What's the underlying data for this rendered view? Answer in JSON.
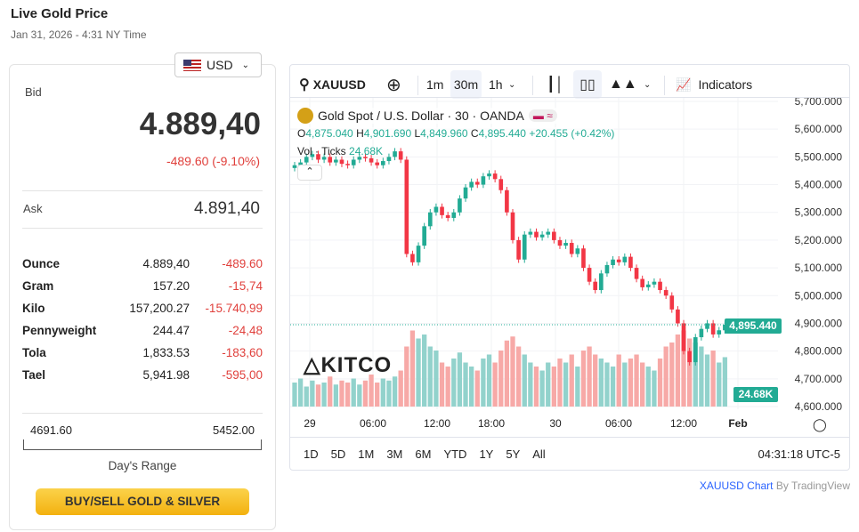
{
  "header": {
    "title": "Live Gold Price",
    "date": "Jan 31, 2026 - 4:31 NY Time"
  },
  "currency": {
    "selected": "USD"
  },
  "quote": {
    "bid_label": "Bid",
    "bid": "4.889,40",
    "change": "-489.60 (-9.10%)",
    "ask_label": "Ask",
    "ask": "4.891,40"
  },
  "units": [
    {
      "name": "Ounce",
      "price": "4.889,40",
      "change": "-489.60"
    },
    {
      "name": "Gram",
      "price": "157.20",
      "change": "-15,74"
    },
    {
      "name": "Kilo",
      "price": "157,200.27",
      "change": "-15.740,99"
    },
    {
      "name": "Pennyweight",
      "price": "244.47",
      "change": "-24,48"
    },
    {
      "name": "Tola",
      "price": "1,833.53",
      "change": "-183,60"
    },
    {
      "name": "Tael",
      "price": "5,941.98",
      "change": "-595,00"
    }
  ],
  "range": {
    "low": "4691.60",
    "high": "5452.00",
    "label": "Day's Range",
    "position": 0.26
  },
  "cta": "BUY/SELL GOLD & SILVER",
  "tv": {
    "symbol": "XAUUSD",
    "intervals": [
      "1m",
      "30m",
      "1h"
    ],
    "indicators": "Indicators",
    "legend_title": "Gold Spot / U.S. Dollar · 30 · OANDA",
    "ohlc": {
      "o_label": "O",
      "o": "4,875.040",
      "h_label": "H",
      "h": "4,901.690",
      "l_label": "L",
      "l": "4,849.960",
      "c_label": "C",
      "c": "4,895.440",
      "chg": "+20.455 (+0.42%)"
    },
    "vol_label": "Vol · Ticks",
    "vol_value": "24.68K",
    "logo": "KITCO",
    "price_badge": "4,895.440",
    "vol_badge": "24.68K",
    "ranges": [
      "1D",
      "5D",
      "1M",
      "3M",
      "6M",
      "YTD",
      "1Y",
      "5Y",
      "All"
    ],
    "clock": "04:31:18 UTC-5",
    "credit_link": "XAUUSD Chart",
    "credit_by": "By TradingView",
    "colors": {
      "up": "#22ab94",
      "down": "#f23645",
      "accent": "#2962ff"
    }
  },
  "chart_data": {
    "type": "candlestick",
    "ylim": [
      4600,
      5700
    ],
    "yticks": [
      "5,700.000",
      "5,600.000",
      "5,500.000",
      "5,400.000",
      "5,300.000",
      "5,200.000",
      "5,100.000",
      "5,000.000",
      "4,900.000",
      "4,800.000",
      "4,700.000",
      "4,600.000"
    ],
    "xticks": [
      "29",
      "06:00",
      "12:00",
      "18:00",
      "30",
      "06:00",
      "12:00",
      "Feb"
    ],
    "close": [
      5470,
      5480,
      5500,
      5510,
      5490,
      5500,
      5480,
      5490,
      5475,
      5470,
      5490,
      5500,
      5495,
      5480,
      5470,
      5485,
      5500,
      5520,
      5490,
      5150,
      5120,
      5180,
      5250,
      5300,
      5320,
      5290,
      5280,
      5300,
      5350,
      5390,
      5410,
      5400,
      5430,
      5440,
      5420,
      5380,
      5300,
      5200,
      5130,
      5220,
      5230,
      5210,
      5220,
      5230,
      5200,
      5180,
      5190,
      5150,
      5170,
      5100,
      5050,
      5020,
      5080,
      5110,
      5130,
      5120,
      5140,
      5100,
      5060,
      5030,
      5040,
      5050,
      5020,
      5000,
      4950,
      4900,
      4800,
      4760,
      4850,
      4880,
      4900,
      4860,
      4875,
      4895
    ],
    "volume": [
      12,
      14,
      10,
      13,
      11,
      12,
      15,
      11,
      13,
      12,
      14,
      11,
      13,
      16,
      12,
      14,
      13,
      15,
      18,
      30,
      38,
      34,
      36,
      30,
      28,
      22,
      20,
      24,
      27,
      22,
      20,
      18,
      24,
      26,
      22,
      28,
      33,
      35,
      30,
      26,
      22,
      20,
      18,
      22,
      20,
      24,
      22,
      26,
      20,
      28,
      30,
      26,
      24,
      22,
      20,
      26,
      22,
      24,
      26,
      22,
      20,
      18,
      24,
      30,
      32,
      36,
      38,
      34,
      32,
      30,
      26,
      28,
      22,
      24.68
    ]
  }
}
